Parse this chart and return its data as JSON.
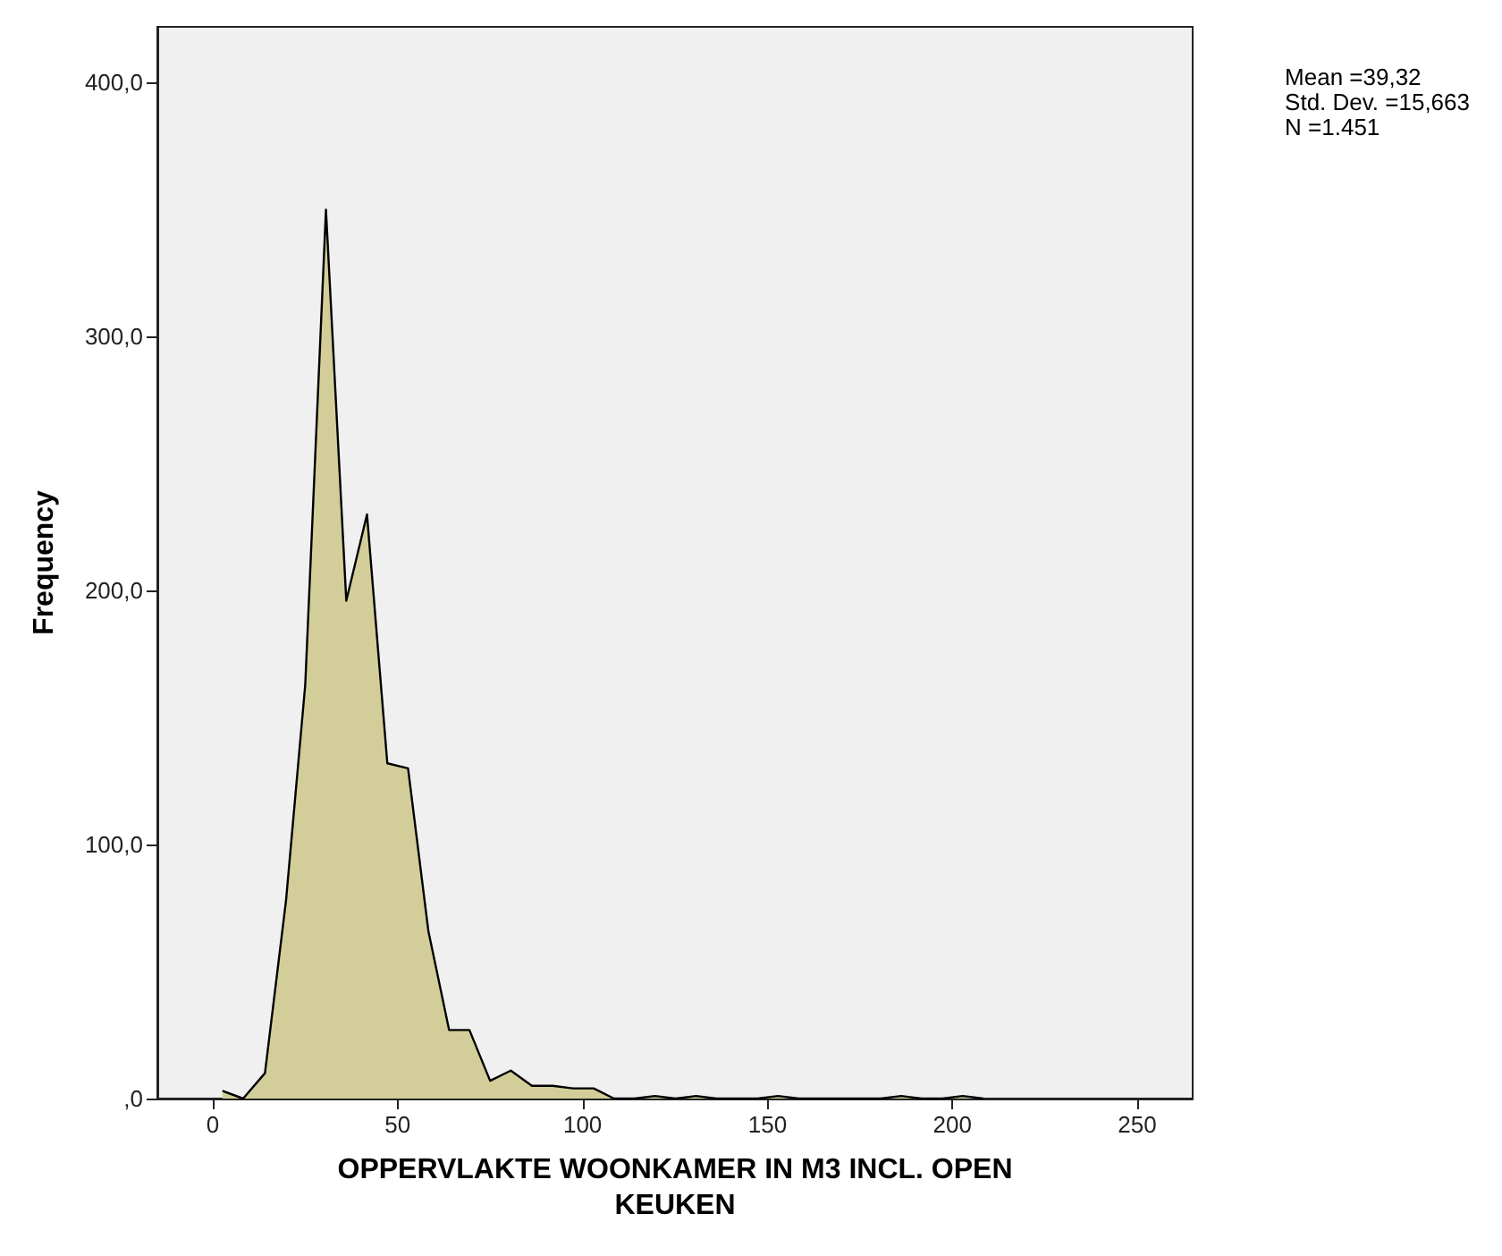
{
  "chart_data": {
    "type": "area",
    "xlabel": "OPPERVLAKTE WOONKAMER IN M3 INCL. OPEN KEUKEN",
    "ylabel": "Frequency",
    "annotations": [
      "Mean =39,32\nStd. Dev. =15,663\nN =1.451"
    ],
    "x": [
      2.6,
      8.2,
      14.1,
      19.8,
      25,
      30.6,
      36.1,
      41.7,
      47.2,
      52.8,
      58.3,
      63.9,
      69.4,
      75,
      80.6,
      86.3,
      91.9,
      97.4,
      103,
      108.5,
      114,
      119.6,
      125.1,
      130.7,
      136.2,
      141.8,
      147.3,
      152.9,
      158.4,
      164,
      169.5,
      175.1,
      180.6,
      186.2,
      191.7,
      197.3,
      202.8,
      208.4
    ],
    "series": [
      {
        "color": "#d3ce99",
        "values": [
          3,
          0,
          10,
          78,
          163,
          350,
          196,
          230,
          132,
          130,
          66,
          27,
          27,
          7,
          11,
          5,
          5,
          4,
          4,
          0,
          0,
          1,
          0,
          1,
          0,
          0,
          0,
          1,
          0,
          0,
          0,
          0,
          0,
          1,
          0,
          0,
          1,
          0
        ]
      }
    ],
    "xlim": [
      -15,
      265
    ],
    "xticks": [
      0,
      50,
      100,
      150,
      200,
      250
    ],
    "ylim": [
      0,
      422
    ],
    "yticks": [
      {
        "value": 0,
        "label": ",0"
      },
      {
        "value": 100,
        "label": "100,0"
      },
      {
        "value": 200,
        "label": "200,0"
      },
      {
        "value": 300,
        "label": "300,0"
      },
      {
        "value": 400,
        "label": "400,0"
      }
    ],
    "grid": false
  }
}
